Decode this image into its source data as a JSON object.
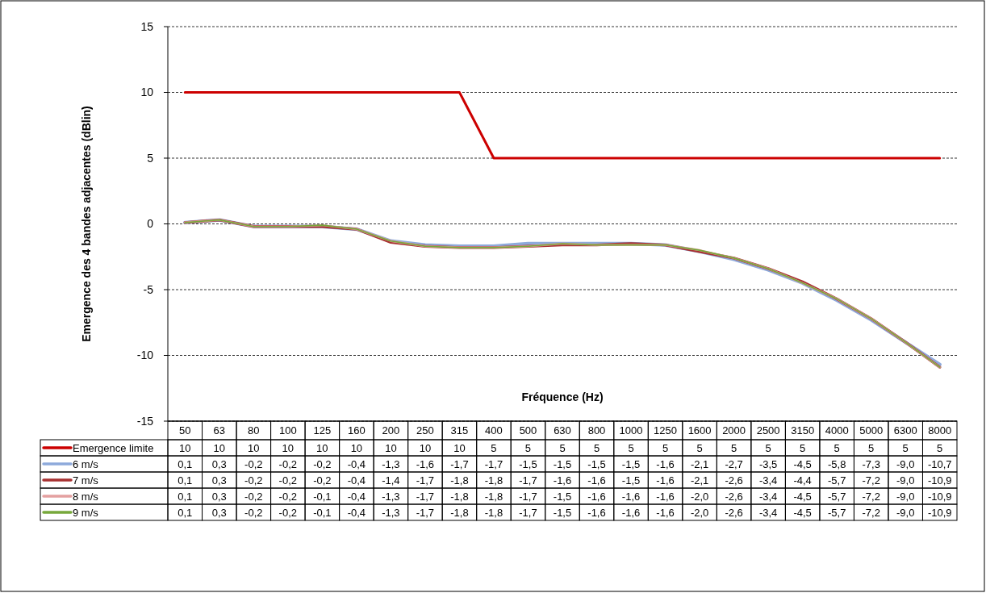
{
  "chart_data": {
    "type": "line",
    "ylabel": "Emergence des 4 bandes adjacentes (dBlin)",
    "xlabel": "Fréquence (Hz)",
    "categories": [
      "50",
      "63",
      "80",
      "100",
      "125",
      "160",
      "200",
      "250",
      "315",
      "400",
      "500",
      "630",
      "800",
      "1000",
      "1250",
      "1600",
      "2000",
      "2500",
      "3150",
      "4000",
      "5000",
      "6300",
      "8000"
    ],
    "ylim": [
      -15,
      15
    ],
    "yticks": [
      -15,
      -10,
      -5,
      0,
      5,
      10,
      15
    ],
    "grid": "y",
    "legend": "bottom",
    "line_style": "solid",
    "marker": "none",
    "series": [
      {
        "name": "Emergence limite",
        "color": "#cc0000",
        "values": [
          10,
          10,
          10,
          10,
          10,
          10,
          10,
          10,
          10,
          5,
          5,
          5,
          5,
          5,
          5,
          5,
          5,
          5,
          5,
          5,
          5,
          5,
          5
        ],
        "value_labels": [
          "10",
          "10",
          "10",
          "10",
          "10",
          "10",
          "10",
          "10",
          "10",
          "5",
          "5",
          "5",
          "5",
          "5",
          "5",
          "5",
          "5",
          "5",
          "5",
          "5",
          "5",
          "5",
          "5"
        ]
      },
      {
        "name": "6 m/s",
        "color": "#8eaadb",
        "values": [
          0.1,
          0.3,
          -0.2,
          -0.2,
          -0.2,
          -0.4,
          -1.3,
          -1.6,
          -1.7,
          -1.7,
          -1.5,
          -1.5,
          -1.5,
          -1.5,
          -1.6,
          -2.1,
          -2.7,
          -3.5,
          -4.5,
          -5.8,
          -7.3,
          -9.0,
          -10.7
        ],
        "value_labels": [
          "0,1",
          "0,3",
          "-0,2",
          "-0,2",
          "-0,2",
          "-0,4",
          "-1,3",
          "-1,6",
          "-1,7",
          "-1,7",
          "-1,5",
          "-1,5",
          "-1,5",
          "-1,5",
          "-1,6",
          "-2,1",
          "-2,7",
          "-3,5",
          "-4,5",
          "-5,8",
          "-7,3",
          "-9,0",
          "-10,7"
        ]
      },
      {
        "name": "7 m/s",
        "color": "#a83232",
        "values": [
          0.1,
          0.3,
          -0.2,
          -0.2,
          -0.2,
          -0.4,
          -1.4,
          -1.7,
          -1.8,
          -1.8,
          -1.7,
          -1.6,
          -1.6,
          -1.5,
          -1.6,
          -2.1,
          -2.6,
          -3.4,
          -4.4,
          -5.7,
          -7.2,
          -9.0,
          -10.9
        ],
        "value_labels": [
          "0,1",
          "0,3",
          "-0,2",
          "-0,2",
          "-0,2",
          "-0,4",
          "-1,4",
          "-1,7",
          "-1,8",
          "-1,8",
          "-1,7",
          "-1,6",
          "-1,6",
          "-1,5",
          "-1,6",
          "-2,1",
          "-2,6",
          "-3,4",
          "-4,4",
          "-5,7",
          "-7,2",
          "-9,0",
          "-10,9"
        ]
      },
      {
        "name": "8 m/s",
        "color": "#e4a0a0",
        "values": [
          0.1,
          0.3,
          -0.2,
          -0.2,
          -0.1,
          -0.4,
          -1.3,
          -1.7,
          -1.8,
          -1.8,
          -1.7,
          -1.5,
          -1.6,
          -1.6,
          -1.6,
          -2.0,
          -2.6,
          -3.4,
          -4.5,
          -5.7,
          -7.2,
          -9.0,
          -10.9
        ],
        "value_labels": [
          "0,1",
          "0,3",
          "-0,2",
          "-0,2",
          "-0,1",
          "-0,4",
          "-1,3",
          "-1,7",
          "-1,8",
          "-1,8",
          "-1,7",
          "-1,5",
          "-1,6",
          "-1,6",
          "-1,6",
          "-2,0",
          "-2,6",
          "-3,4",
          "-4,5",
          "-5,7",
          "-7,2",
          "-9,0",
          "-10,9"
        ]
      },
      {
        "name": "9 m/s",
        "color": "#77a83b",
        "values": [
          0.1,
          0.3,
          -0.2,
          -0.2,
          -0.1,
          -0.4,
          -1.3,
          -1.7,
          -1.8,
          -1.8,
          -1.7,
          -1.5,
          -1.6,
          -1.6,
          -1.6,
          -2.0,
          -2.6,
          -3.4,
          -4.5,
          -5.7,
          -7.2,
          -9.0,
          -10.9
        ],
        "value_labels": [
          "0,1",
          "0,3",
          "-0,2",
          "-0,2",
          "-0,1",
          "-0,4",
          "-1,3",
          "-1,7",
          "-1,8",
          "-1,8",
          "-1,7",
          "-1,5",
          "-1,6",
          "-1,6",
          "-1,6",
          "-2,0",
          "-2,6",
          "-3,4",
          "-4,5",
          "-5,7",
          "-7,2",
          "-9,0",
          "-10,9"
        ]
      }
    ]
  }
}
